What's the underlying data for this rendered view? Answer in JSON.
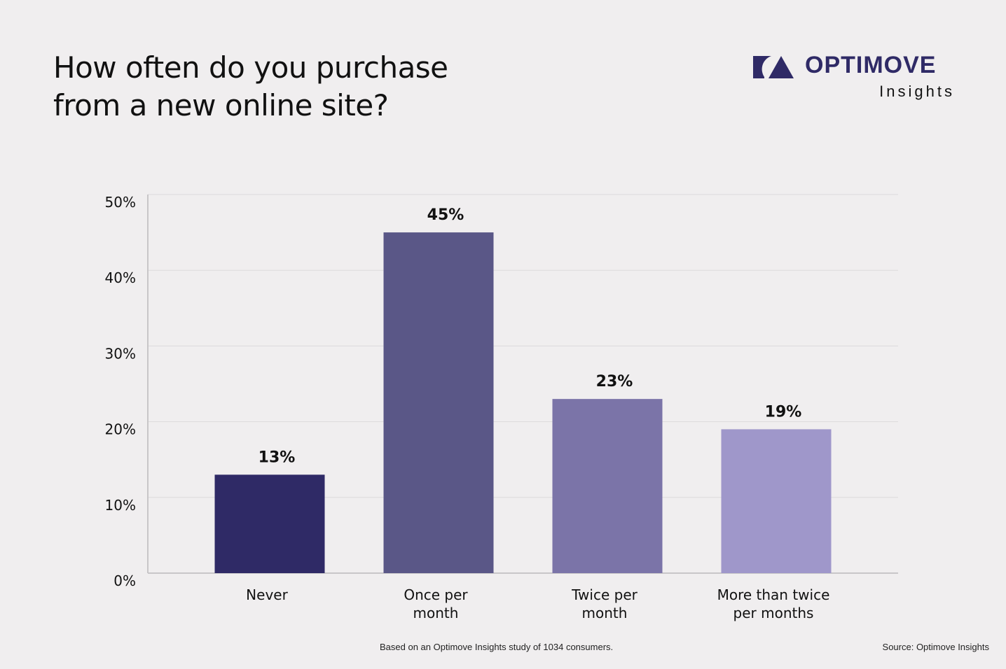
{
  "title_lines": [
    "How often do you purchase",
    "from a new online site?"
  ],
  "logo": {
    "word": "OPTIMOVE",
    "sub": "Insights"
  },
  "footer": {
    "note": "Based on an Optimove Insights study of 1034 consumers.",
    "source": "Source: Optimove Insights"
  },
  "chart_data": {
    "type": "bar",
    "title": "How often do you purchase from a new online site?",
    "categories": [
      [
        "Never"
      ],
      [
        "Once per",
        "month"
      ],
      [
        "Twice per",
        "month"
      ],
      [
        "More than twice",
        "per months"
      ]
    ],
    "values": [
      13,
      45,
      23,
      19
    ],
    "data_labels": [
      "13%",
      "45%",
      "23%",
      "19%"
    ],
    "colors": [
      "#2f2a66",
      "#5a5787",
      "#7b74a8",
      "#9f97ca"
    ],
    "ylim": [
      0,
      50
    ],
    "yticks": [
      "0%",
      "10%",
      "20%",
      "30%",
      "40%",
      "50%"
    ],
    "grid": true,
    "xlabel": "",
    "ylabel": ""
  }
}
